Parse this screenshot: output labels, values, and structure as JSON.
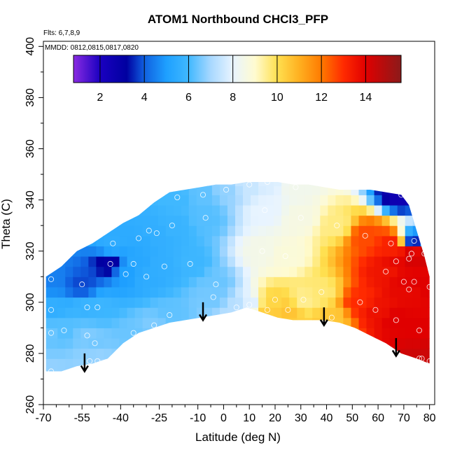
{
  "chart_data": {
    "type": "heatmap",
    "title": "ATOM1 Northbound CHCl3_PFP",
    "flights_note": "Flts: 6,7,8,9",
    "dates_note": "MMDD: 0812,0815,0817,0820",
    "xlabel": "Latitude (deg N)",
    "ylabel": "Theta (C)",
    "xlim": [
      -70,
      82
    ],
    "ylim": [
      260,
      402
    ],
    "x_ticks": [
      -70,
      -55,
      -40,
      -25,
      -10,
      0,
      10,
      20,
      30,
      40,
      50,
      60,
      70,
      80
    ],
    "x_tick_labels": [
      "-70",
      "-55",
      "-40",
      "-25",
      "-10",
      "0",
      "10",
      "20",
      "30",
      "40",
      "50",
      "60",
      "70",
      "80"
    ],
    "x_minor_ticks": [
      -65,
      -60,
      -50,
      -45,
      -35,
      -30,
      -20,
      -15,
      -5,
      5,
      15,
      25,
      35,
      45,
      55,
      65,
      75
    ],
    "y_ticks": [
      260,
      280,
      300,
      320,
      340,
      360,
      380,
      400
    ],
    "y_tick_labels": [
      "260",
      "280",
      "300",
      "320",
      "340",
      "360",
      "380",
      "400"
    ],
    "y_minor_ticks": [
      270,
      290,
      310,
      330,
      350,
      370,
      390
    ],
    "colorbar": {
      "range": [
        0.8,
        15.6
      ],
      "ticks": [
        2,
        4,
        6,
        8,
        10,
        12,
        14
      ],
      "tick_labels": [
        "2",
        "4",
        "6",
        "8",
        "10",
        "12",
        "14"
      ],
      "stops": [
        {
          "value": 0.8,
          "color": "#8a2be2"
        },
        {
          "value": 2.0,
          "color": "#1a00c0"
        },
        {
          "value": 3.2,
          "color": "#0000a0"
        },
        {
          "value": 4.0,
          "color": "#1060e0"
        },
        {
          "value": 5.0,
          "color": "#1ea0ff"
        },
        {
          "value": 6.0,
          "color": "#40b8ff"
        },
        {
          "value": 7.0,
          "color": "#a8d8ff"
        },
        {
          "value": 8.0,
          "color": "#e8f4ff"
        },
        {
          "value": 9.0,
          "color": "#fffbd0"
        },
        {
          "value": 10.0,
          "color": "#ffe050"
        },
        {
          "value": 11.0,
          "color": "#ffb020"
        },
        {
          "value": 12.0,
          "color": "#ff7a00"
        },
        {
          "value": 13.0,
          "color": "#ff2a00"
        },
        {
          "value": 14.0,
          "color": "#e00000"
        },
        {
          "value": 15.6,
          "color": "#8b1a1a"
        }
      ]
    },
    "field": {
      "lat_grid": [
        -69,
        -66,
        -63,
        -60,
        -57,
        -54,
        -51,
        -48,
        -45,
        -42,
        -39,
        -36,
        -33,
        -30,
        -27,
        -24,
        -21,
        -18,
        -15,
        -12,
        -9,
        -6,
        -3,
        0,
        3,
        6,
        9,
        12,
        15,
        18,
        21,
        24,
        27,
        30,
        33,
        36,
        39,
        42,
        45,
        48,
        51,
        54,
        57,
        60,
        63,
        66,
        69,
        72,
        75,
        78,
        80
      ],
      "theta_grid": [
        272,
        276,
        280,
        284,
        288,
        292,
        296,
        300,
        304,
        308,
        312,
        316,
        320,
        324,
        328,
        332,
        336,
        340,
        344,
        347
      ],
      "boundary_top": [
        [
          -69,
          310
        ],
        [
          -63,
          314
        ],
        [
          -57,
          320
        ],
        [
          -51,
          323
        ],
        [
          -45,
          327
        ],
        [
          -39,
          331
        ],
        [
          -33,
          334
        ],
        [
          -27,
          339
        ],
        [
          -21,
          343
        ],
        [
          -15,
          344
        ],
        [
          -9,
          345
        ],
        [
          -3,
          346
        ],
        [
          3,
          346
        ],
        [
          9,
          347
        ],
        [
          15,
          347
        ],
        [
          21,
          347
        ],
        [
          27,
          346
        ],
        [
          33,
          346
        ],
        [
          39,
          345
        ],
        [
          45,
          344
        ],
        [
          51,
          344
        ],
        [
          57,
          344
        ],
        [
          63,
          343
        ],
        [
          69,
          342
        ],
        [
          72,
          338
        ],
        [
          75,
          328
        ],
        [
          78,
          318
        ],
        [
          80,
          310
        ]
      ],
      "boundary_bottom": [
        [
          -69,
          273
        ],
        [
          -63,
          273
        ],
        [
          -57,
          275
        ],
        [
          -51,
          276
        ],
        [
          -45,
          278
        ],
        [
          -39,
          284
        ],
        [
          -33,
          288
        ],
        [
          -27,
          290
        ],
        [
          -21,
          292
        ],
        [
          -15,
          293
        ],
        [
          -9,
          294
        ],
        [
          -3,
          295
        ],
        [
          3,
          296
        ],
        [
          9,
          298
        ],
        [
          15,
          296
        ],
        [
          21,
          294
        ],
        [
          27,
          293
        ],
        [
          33,
          293
        ],
        [
          39,
          293
        ],
        [
          45,
          292
        ],
        [
          51,
          290
        ],
        [
          57,
          287
        ],
        [
          63,
          284
        ],
        [
          69,
          280
        ],
        [
          75,
          278
        ],
        [
          80,
          276
        ]
      ]
    },
    "observations": [
      {
        "lat": -67,
        "theta": 309,
        "value": 4.5
      },
      {
        "lat": -67,
        "theta": 297,
        "value": 5.6
      },
      {
        "lat": -67,
        "theta": 288,
        "value": 6.4
      },
      {
        "lat": -67,
        "theta": 273,
        "value": 6.8
      },
      {
        "lat": -62,
        "theta": 289,
        "value": 6.2
      },
      {
        "lat": -55,
        "theta": 307,
        "value": 3.8
      },
      {
        "lat": -53,
        "theta": 298,
        "value": 5.8
      },
      {
        "lat": -53,
        "theta": 287,
        "value": 6.6
      },
      {
        "lat": -52,
        "theta": 277,
        "value": 6.8
      },
      {
        "lat": -50,
        "theta": 284,
        "value": 6.5
      },
      {
        "lat": -49,
        "theta": 277,
        "value": 6.9
      },
      {
        "lat": -49,
        "theta": 298,
        "value": 5.9
      },
      {
        "lat": -44,
        "theta": 315,
        "value": 3.0
      },
      {
        "lat": -43,
        "theta": 323,
        "value": 5.5
      },
      {
        "lat": -38,
        "theta": 311,
        "value": 5.0
      },
      {
        "lat": -35,
        "theta": 288,
        "value": 6.4
      },
      {
        "lat": -35,
        "theta": 315,
        "value": 5.3
      },
      {
        "lat": -33,
        "theta": 325,
        "value": 5.4
      },
      {
        "lat": -30,
        "theta": 310,
        "value": 5.5
      },
      {
        "lat": -29,
        "theta": 328,
        "value": 5.6
      },
      {
        "lat": -27,
        "theta": 291,
        "value": 6.6
      },
      {
        "lat": -26,
        "theta": 327,
        "value": 5.6
      },
      {
        "lat": -23,
        "theta": 314,
        "value": 5.6
      },
      {
        "lat": -21,
        "theta": 295,
        "value": 6.3
      },
      {
        "lat": -20,
        "theta": 330,
        "value": 5.8
      },
      {
        "lat": -18,
        "theta": 341,
        "value": 6.0
      },
      {
        "lat": -13,
        "theta": 315,
        "value": 5.9
      },
      {
        "lat": -8,
        "theta": 342,
        "value": 6.3
      },
      {
        "lat": -7,
        "theta": 333,
        "value": 6.2
      },
      {
        "lat": -4,
        "theta": 302,
        "value": 6.5
      },
      {
        "lat": -3,
        "theta": 307,
        "value": 6.4
      },
      {
        "lat": 1,
        "theta": 344,
        "value": 6.8
      },
      {
        "lat": 5,
        "theta": 298,
        "value": 7.2
      },
      {
        "lat": 10,
        "theta": 346,
        "value": 7.5
      },
      {
        "lat": 10,
        "theta": 299,
        "value": 7.8
      },
      {
        "lat": 15,
        "theta": 320,
        "value": 8.5
      },
      {
        "lat": 16,
        "theta": 336,
        "value": 8.0
      },
      {
        "lat": 17,
        "theta": 347,
        "value": 7.8
      },
      {
        "lat": 17,
        "theta": 297,
        "value": 10.4
      },
      {
        "lat": 20,
        "theta": 301,
        "value": 10.2
      },
      {
        "lat": 24,
        "theta": 318,
        "value": 8.8
      },
      {
        "lat": 25,
        "theta": 297,
        "value": 10.6
      },
      {
        "lat": 28,
        "theta": 345,
        "value": 8.4
      },
      {
        "lat": 30,
        "theta": 333,
        "value": 8.6
      },
      {
        "lat": 31,
        "theta": 301,
        "value": 9.5
      },
      {
        "lat": 38,
        "theta": 304,
        "value": 9.7
      },
      {
        "lat": 42,
        "theta": 294,
        "value": 10.5
      },
      {
        "lat": 44,
        "theta": 330,
        "value": 9.6
      },
      {
        "lat": 53,
        "theta": 300,
        "value": 13.0
      },
      {
        "lat": 55,
        "theta": 326,
        "value": 12.6
      },
      {
        "lat": 59,
        "theta": 297,
        "value": 13.6
      },
      {
        "lat": 63,
        "theta": 312,
        "value": 13.5
      },
      {
        "lat": 65,
        "theta": 323,
        "value": 13.2
      },
      {
        "lat": 67,
        "theta": 293,
        "value": 14.0
      },
      {
        "lat": 67,
        "theta": 316,
        "value": 13.8
      },
      {
        "lat": 69,
        "theta": 342,
        "value": 2.5
      },
      {
        "lat": 70,
        "theta": 308,
        "value": 13.9
      },
      {
        "lat": 72,
        "theta": 317,
        "value": 14.2
      },
      {
        "lat": 72,
        "theta": 305,
        "value": 13.8
      },
      {
        "lat": 73,
        "theta": 319,
        "value": 14.2
      },
      {
        "lat": 74,
        "theta": 324,
        "value": 3.5
      },
      {
        "lat": 74,
        "theta": 308,
        "value": 14.0
      },
      {
        "lat": 76,
        "theta": 278,
        "value": 14.4
      },
      {
        "lat": 76,
        "theta": 289,
        "value": 14.0
      },
      {
        "lat": 77,
        "theta": 278,
        "value": 14.3
      },
      {
        "lat": 78,
        "theta": 319,
        "value": 14.5
      },
      {
        "lat": 80,
        "theta": 306,
        "value": 14.0
      },
      {
        "lat": 80,
        "theta": 277,
        "value": 14.5
      }
    ],
    "arrows": [
      {
        "lat": -54,
        "theta_start": 280,
        "theta_end": 273
      },
      {
        "lat": -8,
        "theta_start": 300,
        "theta_end": 293
      },
      {
        "lat": 39,
        "theta_start": 298,
        "theta_end": 291
      },
      {
        "lat": 67,
        "theta_start": 286,
        "theta_end": 279
      }
    ]
  }
}
